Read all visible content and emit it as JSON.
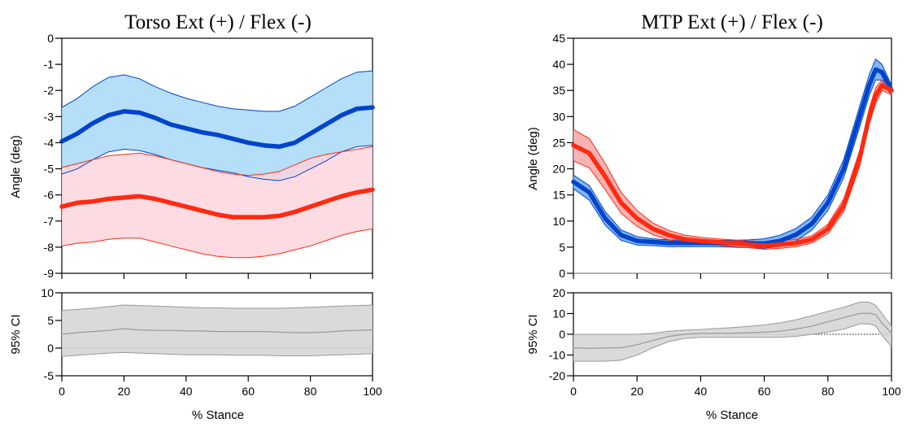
{
  "chart_data": [
    {
      "type": "line",
      "title": "Torso Ext (+) / Flex (-)",
      "xlabel": "",
      "ylabel": "Angle (deg)",
      "xlim": [
        0,
        100
      ],
      "ylim": [
        -9,
        0
      ],
      "x_ticks": [
        0,
        20,
        40,
        60,
        80,
        100
      ],
      "y_ticks": [
        0,
        -1,
        -2,
        -3,
        -4,
        -5,
        -6,
        -7,
        -8,
        -9
      ],
      "grid": false,
      "x": [
        0,
        5,
        10,
        15,
        20,
        25,
        30,
        35,
        40,
        45,
        50,
        55,
        60,
        65,
        70,
        75,
        80,
        85,
        90,
        95,
        100
      ],
      "series": [
        {
          "color": "#0044cc",
          "band_color": "#a8d8f8",
          "values": [
            -3.95,
            -3.65,
            -3.25,
            -2.95,
            -2.8,
            -2.85,
            -3.05,
            -3.3,
            -3.45,
            -3.6,
            -3.7,
            -3.85,
            -4.0,
            -4.1,
            -4.15,
            -4.0,
            -3.65,
            -3.3,
            -2.95,
            -2.7,
            -2.65
          ],
          "upper": [
            -2.65,
            -2.3,
            -1.85,
            -1.5,
            -1.4,
            -1.55,
            -1.85,
            -2.1,
            -2.3,
            -2.45,
            -2.6,
            -2.7,
            -2.75,
            -2.8,
            -2.8,
            -2.6,
            -2.25,
            -1.9,
            -1.55,
            -1.3,
            -1.25
          ],
          "lower": [
            -5.2,
            -5.0,
            -4.65,
            -4.35,
            -4.25,
            -4.3,
            -4.45,
            -4.65,
            -4.8,
            -4.95,
            -5.05,
            -5.15,
            -5.3,
            -5.4,
            -5.45,
            -5.3,
            -5.0,
            -4.7,
            -4.35,
            -4.15,
            -4.1
          ]
        },
        {
          "color": "#ff2a10",
          "band_color": "#fcd5dd",
          "values": [
            -6.45,
            -6.3,
            -6.25,
            -6.15,
            -6.1,
            -6.05,
            -6.15,
            -6.3,
            -6.45,
            -6.6,
            -6.75,
            -6.85,
            -6.85,
            -6.85,
            -6.8,
            -6.65,
            -6.45,
            -6.25,
            -6.05,
            -5.9,
            -5.8
          ],
          "upper": [
            -4.95,
            -4.8,
            -4.65,
            -4.5,
            -4.45,
            -4.4,
            -4.5,
            -4.65,
            -4.8,
            -4.95,
            -5.1,
            -5.2,
            -5.25,
            -5.2,
            -5.1,
            -4.85,
            -4.6,
            -4.45,
            -4.35,
            -4.25,
            -4.15
          ],
          "lower": [
            -7.95,
            -7.85,
            -7.8,
            -7.7,
            -7.65,
            -7.65,
            -7.8,
            -7.95,
            -8.1,
            -8.25,
            -8.35,
            -8.4,
            -8.4,
            -8.35,
            -8.25,
            -8.1,
            -7.95,
            -7.75,
            -7.55,
            -7.4,
            -7.3
          ]
        }
      ]
    },
    {
      "type": "area",
      "title": "",
      "xlabel": "% Stance",
      "ylabel": "95% CI",
      "xlim": [
        0,
        100
      ],
      "ylim": [
        -5,
        10
      ],
      "x_ticks": [
        0,
        20,
        40,
        60,
        80,
        100
      ],
      "y_ticks": [
        10,
        5,
        0,
        -5
      ],
      "zero_line": "dotted",
      "x": [
        0,
        5,
        10,
        15,
        20,
        25,
        30,
        35,
        40,
        45,
        50,
        55,
        60,
        65,
        70,
        75,
        80,
        85,
        90,
        95,
        100
      ],
      "series": [
        {
          "color": "#999999",
          "band_color": "#d4d4d4",
          "values": [
            2.5,
            2.8,
            3.0,
            3.2,
            3.5,
            3.3,
            3.2,
            3.2,
            3.1,
            3.1,
            3.0,
            3.0,
            3.0,
            3.0,
            2.9,
            2.8,
            2.8,
            2.9,
            3.1,
            3.2,
            3.3
          ],
          "upper": [
            6.8,
            7.0,
            7.2,
            7.5,
            7.8,
            7.7,
            7.6,
            7.5,
            7.4,
            7.3,
            7.3,
            7.2,
            7.2,
            7.2,
            7.2,
            7.3,
            7.4,
            7.5,
            7.6,
            7.7,
            7.8
          ],
          "lower": [
            -1.5,
            -1.3,
            -1.1,
            -0.9,
            -0.8,
            -0.9,
            -1.0,
            -1.1,
            -1.2,
            -1.2,
            -1.2,
            -1.3,
            -1.3,
            -1.3,
            -1.4,
            -1.4,
            -1.4,
            -1.3,
            -1.2,
            -1.1,
            -1.0
          ]
        }
      ]
    },
    {
      "type": "line",
      "title": "MTP Ext (+) / Flex (-)",
      "xlabel": "",
      "ylabel": "Angle (deg)",
      "xlim": [
        0,
        100
      ],
      "ylim": [
        0,
        45
      ],
      "x_ticks": [
        0,
        20,
        40,
        60,
        80,
        100
      ],
      "y_ticks": [
        45,
        40,
        35,
        30,
        25,
        20,
        15,
        10,
        5,
        0
      ],
      "grid": false,
      "zero_line": "solid",
      "x": [
        0,
        5,
        10,
        15,
        20,
        25,
        30,
        35,
        40,
        45,
        50,
        55,
        60,
        65,
        70,
        75,
        80,
        85,
        90,
        93,
        95,
        97,
        100
      ],
      "series": [
        {
          "color": "#0044cc",
          "band_color": "#6aabf0",
          "values": [
            17.5,
            15.5,
            10.5,
            7.3,
            6.2,
            6.0,
            5.8,
            5.8,
            5.8,
            5.8,
            5.8,
            5.7,
            5.7,
            6.2,
            7.4,
            9.5,
            13.5,
            20.0,
            30.0,
            36.0,
            39.0,
            38.5,
            35.0
          ],
          "upper": [
            18.8,
            16.8,
            11.8,
            8.3,
            7.0,
            6.6,
            6.4,
            6.3,
            6.3,
            6.3,
            6.3,
            6.4,
            6.6,
            7.3,
            8.6,
            10.8,
            15.0,
            21.8,
            32.0,
            38.0,
            41.0,
            40.0,
            36.0
          ],
          "lower": [
            16.2,
            14.0,
            9.2,
            6.3,
            5.4,
            5.3,
            5.1,
            5.1,
            5.1,
            5.1,
            5.0,
            4.9,
            4.8,
            5.2,
            6.2,
            8.3,
            12.0,
            18.3,
            28.0,
            34.0,
            37.0,
            37.0,
            34.0
          ]
        },
        {
          "color": "#ff2a10",
          "band_color": "#f6a6a6",
          "values": [
            24.5,
            23.0,
            18.5,
            13.5,
            10.5,
            8.5,
            7.3,
            6.5,
            6.2,
            6.0,
            5.8,
            5.5,
            5.3,
            5.5,
            5.8,
            6.5,
            8.5,
            13.0,
            22.0,
            30.0,
            34.0,
            36.0,
            35.0
          ],
          "upper": [
            27.5,
            25.8,
            21.0,
            15.5,
            12.0,
            9.6,
            8.2,
            7.3,
            6.9,
            6.6,
            6.4,
            6.2,
            6.0,
            6.2,
            6.5,
            7.2,
            9.4,
            14.2,
            23.5,
            31.5,
            35.5,
            37.0,
            35.8
          ],
          "lower": [
            21.5,
            20.2,
            16.0,
            11.5,
            9.0,
            7.4,
            6.4,
            5.8,
            5.5,
            5.4,
            5.2,
            4.9,
            4.6,
            4.8,
            5.1,
            5.8,
            7.6,
            11.8,
            20.5,
            28.5,
            32.5,
            35.0,
            34.2
          ]
        }
      ]
    },
    {
      "type": "area",
      "title": "",
      "xlabel": "% Stance",
      "ylabel": "95% CI",
      "xlim": [
        0,
        100
      ],
      "ylim": [
        -20,
        20
      ],
      "x_ticks": [
        0,
        20,
        40,
        60,
        80,
        100
      ],
      "y_ticks": [
        20,
        10,
        0,
        -10,
        -20
      ],
      "zero_line": "dotted",
      "x": [
        0,
        5,
        10,
        15,
        20,
        25,
        30,
        35,
        40,
        45,
        50,
        55,
        60,
        65,
        70,
        75,
        80,
        85,
        90,
        93,
        95,
        97,
        100
      ],
      "series": [
        {
          "color": "#999999",
          "band_color": "#d4d4d4",
          "values": [
            -6.5,
            -6.8,
            -6.6,
            -6.5,
            -5.0,
            -3.0,
            -1.0,
            0.0,
            0.5,
            0.5,
            0.5,
            0.8,
            1.0,
            1.5,
            2.5,
            4.0,
            6.0,
            8.0,
            10.0,
            10.2,
            9.5,
            5.5,
            0.5
          ],
          "upper": [
            0.0,
            0.0,
            0.0,
            0.0,
            0.0,
            0.5,
            1.5,
            2.0,
            2.3,
            2.8,
            3.2,
            3.8,
            4.5,
            5.5,
            7.0,
            9.0,
            11.0,
            13.0,
            15.5,
            15.5,
            14.0,
            10.0,
            4.0
          ],
          "lower": [
            -13.0,
            -13.0,
            -13.0,
            -12.5,
            -10.0,
            -6.5,
            -3.5,
            -2.0,
            -1.5,
            -1.5,
            -1.5,
            -1.5,
            -1.5,
            -1.5,
            -1.0,
            0.0,
            1.0,
            2.5,
            5.0,
            5.0,
            4.0,
            -0.5,
            -6.0
          ]
        }
      ]
    }
  ]
}
